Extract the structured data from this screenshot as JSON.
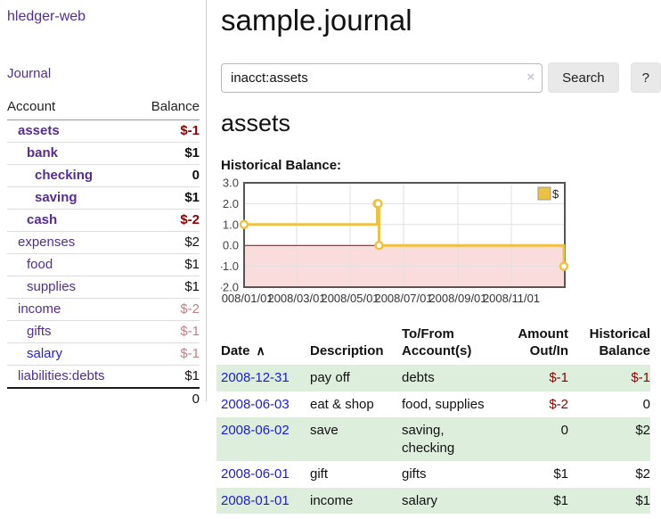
{
  "app": {
    "title": "hledger-web",
    "nav_journal": "Journal"
  },
  "sidebar": {
    "accounts_header": {
      "account": "Account",
      "balance": "Balance"
    },
    "accounts": [
      {
        "name": "assets",
        "balance": "$-1",
        "level": 1,
        "bold": true,
        "neg": true
      },
      {
        "name": "bank",
        "balance": "$1",
        "level": 2,
        "bold": true
      },
      {
        "name": "checking",
        "balance": "0",
        "level": 3,
        "bold": true
      },
      {
        "name": "saving",
        "balance": "$1",
        "level": 3,
        "bold": true
      },
      {
        "name": "cash",
        "balance": "$-2",
        "level": 2,
        "bold": true,
        "neg": true
      },
      {
        "name": "expenses",
        "balance": "$2",
        "level": 1
      },
      {
        "name": "food",
        "balance": "$1",
        "level": 2
      },
      {
        "name": "supplies",
        "balance": "$1",
        "level": 2
      },
      {
        "name": "income",
        "balance": "$-2",
        "level": 1,
        "dim": true
      },
      {
        "name": "gifts",
        "balance": "$-1",
        "level": 2,
        "dim": true
      },
      {
        "name": "salary",
        "balance": "$-1",
        "level": 2,
        "dim": true,
        "blue": true
      },
      {
        "name": "liabilities:debts",
        "balance": "$1",
        "level": 1
      }
    ],
    "total": "0"
  },
  "header": {
    "title": "sample.journal"
  },
  "search": {
    "value": "inacct:assets",
    "clear_icon": "×",
    "button": "Search",
    "help_button": "?"
  },
  "account_page": {
    "heading": "assets",
    "chart_label": "Historical Balance:"
  },
  "chart_data": {
    "type": "line",
    "style": "step",
    "title": "Historical Balance",
    "ylim": [
      -2,
      3
    ],
    "x_range": [
      "2008-01-01",
      "2009-01-01"
    ],
    "y_ticks": [
      {
        "v": 3,
        "label": "3.0"
      },
      {
        "v": 2,
        "label": "2.0"
      },
      {
        "v": 1,
        "label": "1.0"
      },
      {
        "v": 0,
        "label": "0.0"
      },
      {
        "v": -1,
        "label": "-1.0"
      },
      {
        "v": -2,
        "label": "-2.0"
      }
    ],
    "x_ticks": [
      {
        "date": "2008-01-01",
        "label": "2008/01/01"
      },
      {
        "date": "2008-03-01",
        "label": "2008/03/01"
      },
      {
        "date": "2008-05-01",
        "label": "2008/05/01"
      },
      {
        "date": "2008-07-01",
        "label": "2008/07/01"
      },
      {
        "date": "2008-09-01",
        "label": "2008/09/01"
      },
      {
        "date": "2008-11-01",
        "label": "2008/11/01"
      }
    ],
    "series": [
      {
        "name": "$",
        "color": "#edc240",
        "points": [
          [
            "2008-01-01",
            1
          ],
          [
            "2008-06-01",
            2
          ],
          [
            "2008-06-02",
            2
          ],
          [
            "2008-06-03",
            0
          ],
          [
            "2008-12-31",
            -1
          ]
        ]
      }
    ],
    "legend": {
      "label": "$",
      "position": "top-right"
    },
    "negative_region_color": "#fbdcdc",
    "zero_line_color": "#990000",
    "grid": true
  },
  "register": {
    "sort_icon": "∧",
    "columns": [
      {
        "label": "Date",
        "align": "left",
        "sortable": true
      },
      {
        "label": "Description",
        "align": "left"
      },
      {
        "label": "To/From Account(s)",
        "align": "left"
      },
      {
        "label": "Amount Out/In",
        "align": "right"
      },
      {
        "label": "Historical Balance",
        "align": "right"
      }
    ],
    "rows": [
      {
        "date": "2008-12-31",
        "description": "pay off",
        "accounts": "debts",
        "amount": "$-1",
        "amount_neg": true,
        "balance": "$-1",
        "balance_neg": true
      },
      {
        "date": "2008-06-03",
        "description": "eat & shop",
        "accounts": "food, supplies",
        "amount": "$-2",
        "amount_neg": true,
        "balance": "0",
        "balance_neg": false
      },
      {
        "date": "2008-06-02",
        "description": "save",
        "accounts": "saving, checking",
        "amount": "0",
        "amount_neg": false,
        "balance": "$2",
        "balance_neg": false
      },
      {
        "date": "2008-06-01",
        "description": "gift",
        "accounts": "gifts",
        "amount": "$1",
        "amount_neg": false,
        "balance": "$2",
        "balance_neg": false
      },
      {
        "date": "2008-01-01",
        "description": "income",
        "accounts": "salary",
        "amount": "$1",
        "amount_neg": false,
        "balance": "$1",
        "balance_neg": false
      }
    ]
  }
}
